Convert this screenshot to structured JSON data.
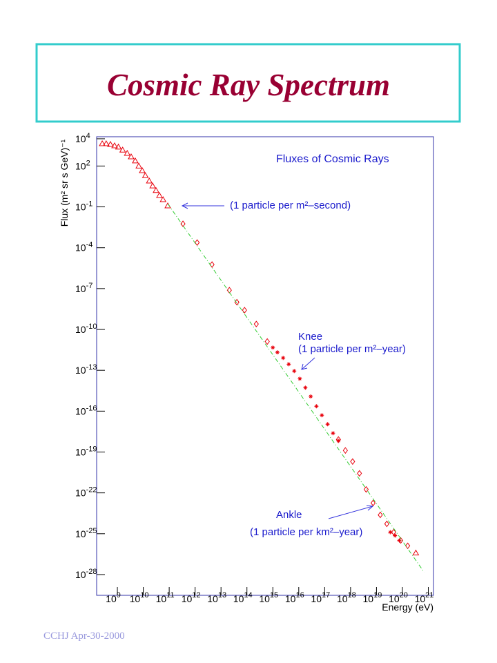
{
  "chart_data": {
    "type": "scatter",
    "title": "Cosmic Ray Spectrum",
    "legend_title": "Fluxes of Cosmic Rays",
    "x_label": "Energy (eV)",
    "y_label": "Flux (m² sr s GeV)⁻¹",
    "footer": "CCHJ Apr-30-2000",
    "annotations": [
      "(1 particle per m²–second)",
      "Knee",
      "(1 particle per m²–year)",
      "Ankle",
      "(1 particle per km²–year)"
    ],
    "xscale": "log",
    "yscale": "log",
    "xlim": [
      158500000.0,
      1.585e+21
    ],
    "ylim": [
      3e-30,
      14100.0
    ],
    "xticks": [
      {
        "value": 1000000000.0,
        "label": "10^9"
      },
      {
        "value": 10000000000.0,
        "label": "10^10"
      },
      {
        "value": 100000000000.0,
        "label": "10^11"
      },
      {
        "value": 1000000000000.0,
        "label": "10^12"
      },
      {
        "value": 10000000000000.0,
        "label": "10^13"
      },
      {
        "value": 100000000000000.0,
        "label": "10^14"
      },
      {
        "value": 1000000000000000.0,
        "label": "10^15"
      },
      {
        "value": 1e+16,
        "label": "10^16"
      },
      {
        "value": 1e+17,
        "label": "10^17"
      },
      {
        "value": 1e+18,
        "label": "10^18"
      },
      {
        "value": 1e+19,
        "label": "10^19"
      },
      {
        "value": 1e+20,
        "label": "10^20"
      },
      {
        "value": 1e+21,
        "label": "10^21"
      }
    ],
    "yticks": [
      {
        "value": 10000.0,
        "label": "10^4"
      },
      {
        "value": 100.0,
        "label": "10^2"
      },
      {
        "value": 0.1,
        "label": "10^-1"
      },
      {
        "value": 0.0001,
        "label": "10^-4"
      },
      {
        "value": 1e-07,
        "label": "10^-7"
      },
      {
        "value": 1e-10,
        "label": "10^-10"
      },
      {
        "value": 1e-13,
        "label": "10^-13"
      },
      {
        "value": 1e-16,
        "label": "10^-16"
      },
      {
        "value": 1e-19,
        "label": "10^-19"
      },
      {
        "value": 1e-22,
        "label": "10^-22"
      },
      {
        "value": 1e-25,
        "label": "10^-25"
      },
      {
        "value": 1e-28,
        "label": "10^-28"
      }
    ],
    "series": [
      {
        "marker": "triangle",
        "color": "#e8000b",
        "x": [
          260000000.0,
          370000000.0,
          540000000.0,
          780000000.0,
          1100000000.0,
          1600000000.0,
          2400000000.0,
          3400000000.0,
          4900000000.0,
          6700000000.0,
          9100000000.0,
          12000000000.0,
          17000000000.0,
          23000000000.0,
          31000000000.0,
          42000000000.0,
          58000000000.0,
          88000000000.0,
          3.3e+20
        ],
        "values": [
          4400,
          4400,
          3900,
          3100,
          2500,
          1500,
          860,
          480,
          240,
          100,
          46,
          20,
          8,
          3.5,
          1.6,
          0.69,
          0.34,
          0.12,
          3.9e-27
        ]
      },
      {
        "marker": "diamond",
        "color": "#e8000b",
        "x": [
          340000000000.0,
          1200000000000.0,
          4500000000000.0,
          21000000000000.0,
          41000000000000.0,
          81000000000000.0,
          230000000000000.0,
          610000000000000.0,
          3.4e+17,
          6.3e+17,
          1.2e+18,
          2.2e+18,
          4e+18,
          7.4e+18,
          1.4e+19,
          2.5e+19,
          4.6e+19,
          8.6e+19,
          1.6e+20
        ],
        "values": [
          0.0057,
          0.00024,
          5.8e-06,
          7.6e-08,
          1e-08,
          2.6e-09,
          2.5e-10,
          1.3e-11,
          8.3e-19,
          1.3e-19,
          2e-20,
          2.7e-21,
          1.8e-22,
          1.8e-23,
          2.4e-24,
          5.3e-25,
          1.3e-25,
          3.2e-26,
          1.3e-26
        ]
      },
      {
        "marker": "star",
        "color": "#e8000b",
        "x": [
          1000000000000000.0,
          1500000000000000.0,
          2500000000000000.0,
          4100000000000000.0,
          6700000000000000.0,
          1.1e+16,
          1.8e+16,
          2.9e+16,
          4.8e+16,
          7.8e+16,
          1.3e+17,
          2.1e+17,
          3.4e+17,
          3.4e+19,
          5.2e+19,
          7.6e+19
        ],
        "values": [
          4.7e-12,
          2.1e-12,
          8.1e-13,
          2.8e-13,
          8.8e-14,
          2.4e-14,
          5.3e-15,
          1.2e-15,
          2.3e-16,
          5e-17,
          1.1e-17,
          2.4e-18,
          6.6e-19,
          1.3e-25,
          7.3e-26,
          3.2e-26
        ]
      },
      {
        "marker": "none",
        "line": "dashdot",
        "color": "#33cc33",
        "x": [
          88000000000.0,
          6.9e+20
        ],
        "values": [
          0.17,
          1.5e-28
        ]
      }
    ]
  }
}
